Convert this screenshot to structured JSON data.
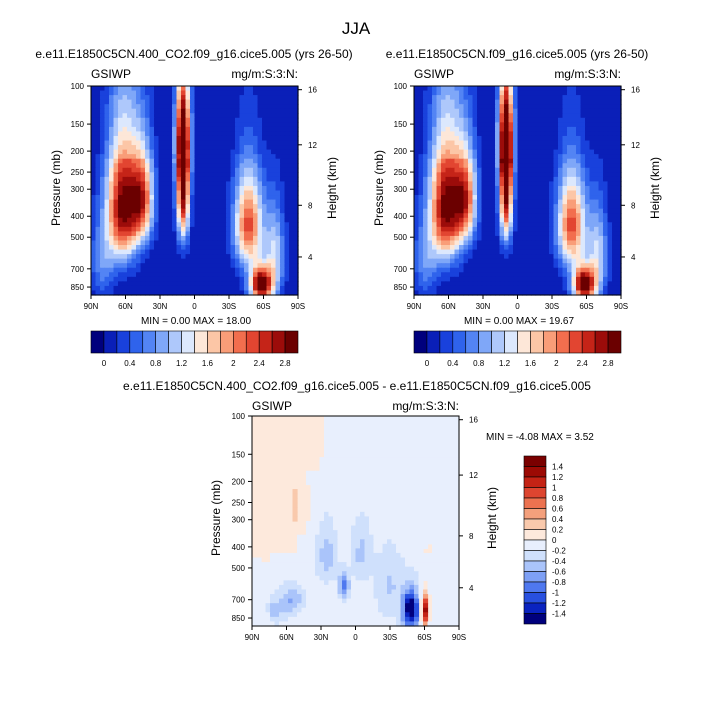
{
  "figure": {
    "title": "JJA"
  },
  "colors": {
    "frame": "#000000",
    "abs_palette": [
      "#00007d",
      "#0a1fb8",
      "#1941dc",
      "#2f63ec",
      "#5384f4",
      "#7fa7f8",
      "#aec8fb",
      "#dce8fd",
      "#fde7d8",
      "#fcc6a6",
      "#f99d78",
      "#f26e4e",
      "#e24531",
      "#c52418",
      "#9c0c0a",
      "#6b0000"
    ],
    "diff_palette": [
      "#00007d",
      "#0a23c0",
      "#2850e0",
      "#4f78ef",
      "#7ea0f5",
      "#aac4fa",
      "#cfe0fc",
      "#e8effd",
      "#fde9dc",
      "#f9c9ac",
      "#f4a07c",
      "#ec7250",
      "#dd4530",
      "#c42315",
      "#9c0a04",
      "#7a0000"
    ]
  },
  "chart_data": [
    {
      "id": "panel-1",
      "type": "heatmap",
      "title": "e.e11.E1850C5CN.400_CO2.f09_g16.cice5.005 (yrs 26-50)",
      "left_label": "GSIWP",
      "right_label": "mg/m:S:3:N:",
      "xlabel": "",
      "ylabel": "Pressure (mb)",
      "ylabel_right": "Height (km)",
      "x_ticks": [
        "90N",
        "60N",
        "30N",
        "0",
        "30S",
        "60S",
        "90S"
      ],
      "y_ticks": [
        "100",
        "150",
        "200",
        "250",
        "300",
        "400",
        "500",
        "700",
        "850"
      ],
      "y_ticks_right": [
        "16",
        "12",
        "8",
        "4"
      ],
      "ylim": [
        100,
        925
      ],
      "min_max_text": "MIN =   0.00   MAX =  18.00",
      "min": 0.0,
      "max": 18.0,
      "colorbar_ticks": [
        "0",
        "0.4",
        "0.8",
        "1.2",
        "1.6",
        "2",
        "2.4",
        "2.8"
      ],
      "features": [
        {
          "lat": 62,
          "p": 360,
          "value": 2.9,
          "lat_sigma": 10,
          "p_sigma": 180
        },
        {
          "lat": 45,
          "p": 330,
          "value": 2.0,
          "lat_sigma": 7,
          "p_sigma": 120
        },
        {
          "lat": 10,
          "p": 280,
          "value": 3.0,
          "lat_sigma": 4,
          "p_sigma": 150
        },
        {
          "lat": 10,
          "p": 170,
          "value": 1.8,
          "lat_sigma": 5,
          "p_sigma": 60
        },
        {
          "lat": -47,
          "p": 440,
          "value": 2.3,
          "lat_sigma": 9,
          "p_sigma": 160
        },
        {
          "lat": -58,
          "p": 830,
          "value": 3.2,
          "lat_sigma": 7,
          "p_sigma": 110
        },
        {
          "lat": -70,
          "p": 600,
          "value": 1.2,
          "lat_sigma": 6,
          "p_sigma": 200
        },
        {
          "lat": 80,
          "p": 650,
          "value": 0.7,
          "lat_sigma": 8,
          "p_sigma": 200
        }
      ]
    },
    {
      "id": "panel-2",
      "type": "heatmap",
      "title": "e.e11.E1850C5CN.f09_g16.cice5.005 (yrs 26-50)",
      "left_label": "GSIWP",
      "right_label": "mg/m:S:3:N:",
      "xlabel": "",
      "ylabel": "Pressure (mb)",
      "ylabel_right": "Height (km)",
      "x_ticks": [
        "90N",
        "60N",
        "30N",
        "0",
        "30S",
        "60S",
        "90S"
      ],
      "y_ticks": [
        "100",
        "150",
        "200",
        "250",
        "300",
        "400",
        "500",
        "700",
        "850"
      ],
      "y_ticks_right": [
        "16",
        "12",
        "8",
        "4"
      ],
      "ylim": [
        100,
        925
      ],
      "min_max_text": "MIN =   0.00   MAX =  19.67",
      "min": 0.0,
      "max": 19.67,
      "colorbar_ticks": [
        "0",
        "0.4",
        "0.8",
        "1.2",
        "1.6",
        "2",
        "2.4",
        "2.8"
      ],
      "features": [
        {
          "lat": 62,
          "p": 360,
          "value": 2.9,
          "lat_sigma": 10,
          "p_sigma": 180
        },
        {
          "lat": 45,
          "p": 330,
          "value": 2.0,
          "lat_sigma": 7,
          "p_sigma": 120
        },
        {
          "lat": 10,
          "p": 280,
          "value": 3.1,
          "lat_sigma": 4,
          "p_sigma": 150
        },
        {
          "lat": 10,
          "p": 170,
          "value": 1.9,
          "lat_sigma": 5,
          "p_sigma": 60
        },
        {
          "lat": -47,
          "p": 440,
          "value": 2.3,
          "lat_sigma": 9,
          "p_sigma": 160
        },
        {
          "lat": -58,
          "p": 830,
          "value": 3.2,
          "lat_sigma": 7,
          "p_sigma": 110
        },
        {
          "lat": -70,
          "p": 600,
          "value": 1.2,
          "lat_sigma": 6,
          "p_sigma": 200
        },
        {
          "lat": 80,
          "p": 650,
          "value": 0.7,
          "lat_sigma": 8,
          "p_sigma": 200
        }
      ]
    },
    {
      "id": "panel-diff",
      "type": "heatmap",
      "title": "e.e11.E1850C5CN.400_CO2.f09_g16.cice5.005 - e.e11.E1850C5CN.f09_g16.cice5.005",
      "left_label": "GSIWP",
      "right_label": "mg/m:S:3:N:",
      "xlabel": "",
      "ylabel": "Pressure (mb)",
      "ylabel_right": "Height (km)",
      "x_ticks": [
        "90N",
        "60N",
        "30N",
        "0",
        "30S",
        "60S",
        "90S"
      ],
      "y_ticks": [
        "100",
        "150",
        "200",
        "250",
        "300",
        "400",
        "500",
        "700",
        "850"
      ],
      "y_ticks_right": [
        "16",
        "12",
        "8",
        "4"
      ],
      "ylim": [
        100,
        925
      ],
      "min_max_text": "MIN = -4.08   MAX =   3.52",
      "min": -4.08,
      "max": 3.52,
      "colorbar_ticks": [
        "1.4",
        "1.2",
        "1",
        "0.8",
        "0.6",
        "0.4",
        "0.2",
        "0",
        "-0.2",
        "-0.4",
        "-0.6",
        "-0.8",
        "-1",
        "-1.2",
        "-1.4"
      ],
      "features": [
        {
          "lat": 50,
          "p": 260,
          "value": 0.25,
          "lat_sigma": 8,
          "p_sigma": 70
        },
        {
          "lat": 10,
          "p": 600,
          "value": -0.9,
          "lat_sigma": 3,
          "p_sigma": 50
        },
        {
          "lat": 25,
          "p": 430,
          "value": -0.4,
          "lat_sigma": 6,
          "p_sigma": 90
        },
        {
          "lat": -5,
          "p": 420,
          "value": -0.35,
          "lat_sigma": 6,
          "p_sigma": 90
        },
        {
          "lat": 55,
          "p": 700,
          "value": -0.5,
          "lat_sigma": 6,
          "p_sigma": 70
        },
        {
          "lat": 70,
          "p": 780,
          "value": -0.4,
          "lat_sigma": 6,
          "p_sigma": 70
        },
        {
          "lat": -48,
          "p": 780,
          "value": -1.6,
          "lat_sigma": 5,
          "p_sigma": 110
        },
        {
          "lat": -60,
          "p": 780,
          "value": 1.5,
          "lat_sigma": 2.5,
          "p_sigma": 90
        },
        {
          "lat": -30,
          "p": 600,
          "value": -0.3,
          "lat_sigma": 8,
          "p_sigma": 150
        }
      ]
    }
  ]
}
